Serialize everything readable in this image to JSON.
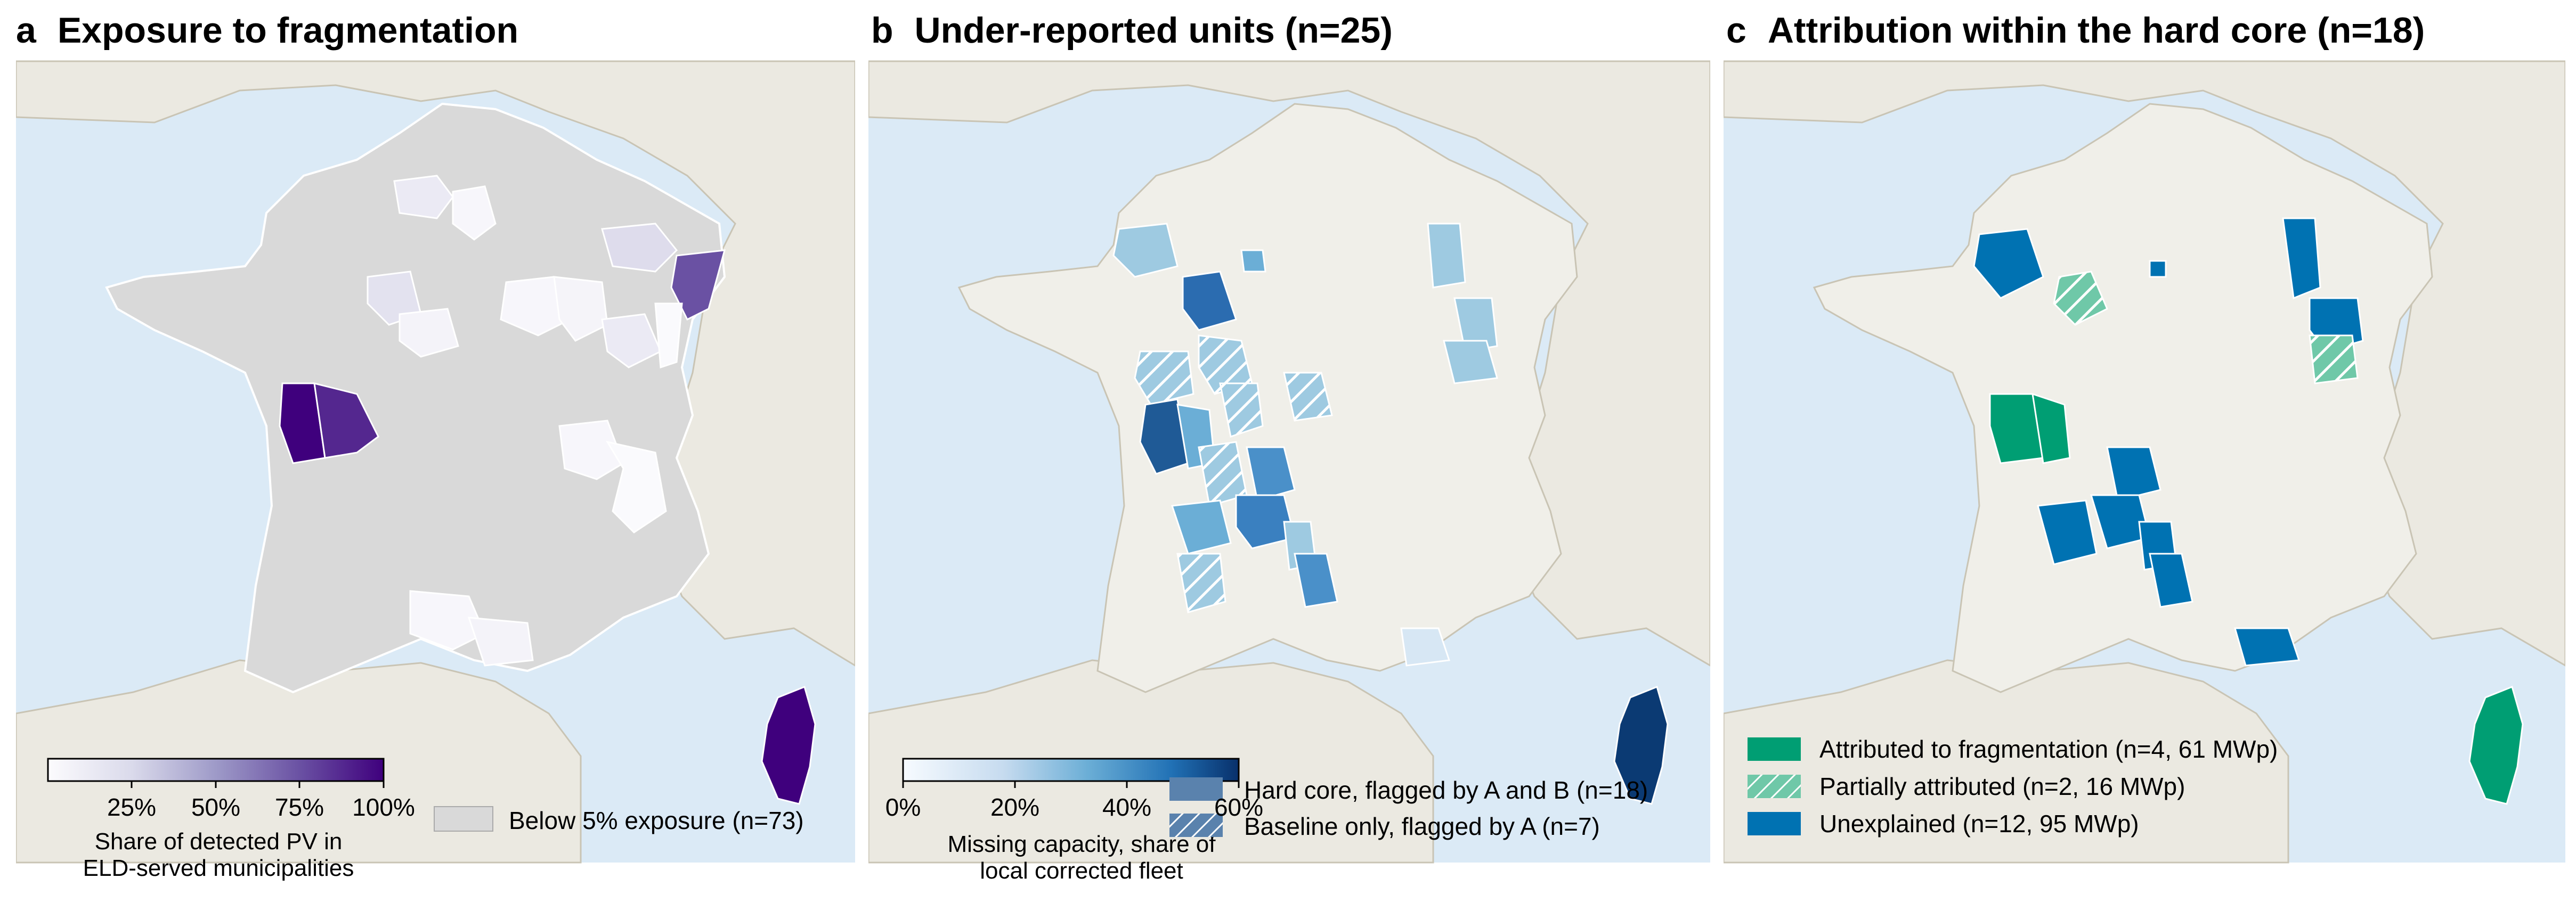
{
  "panels": [
    {
      "letter": "a",
      "title": "Exposure to fragmentation",
      "colorbar": {
        "ticks": [
          "25%",
          "50%",
          "75%",
          "100%"
        ],
        "label_line1": "Share of detected PV in",
        "label_line2": "ELD-served municipalities",
        "colors": [
          "#fcfbfd",
          "#dadaeb",
          "#9e9ac8",
          "#6a51a3",
          "#3f007d"
        ]
      },
      "legend": {
        "label": "Below 5% exposure (n=73)",
        "color": "#d9d9d9"
      }
    },
    {
      "letter": "b",
      "title": "Under-reported units (n=25)",
      "colorbar": {
        "ticks": [
          "0%",
          "20%",
          "40%",
          "60%"
        ],
        "label_line1": "Missing capacity, share of",
        "label_line2": "local corrected fleet",
        "colors": [
          "#f7fbff",
          "#c6dbef",
          "#6baed6",
          "#2171b5",
          "#08306b"
        ]
      },
      "legend": [
        {
          "label": "Hard core, flagged by A and B (n=18)",
          "style": "solid",
          "color": "#5a82ad"
        },
        {
          "label": "Baseline only, flagged by A (n=7)",
          "style": "hatched",
          "color": "#5a82ad"
        }
      ]
    },
    {
      "letter": "c",
      "title": "Attribution within the hard core (n=18)",
      "legend": [
        {
          "label": "Attributed to fragmentation (n=4, 61 MWp)",
          "style": "solid",
          "color": "#009e73"
        },
        {
          "label": "Partially attributed (n=2, 16 MWp)",
          "style": "hatched",
          "color": "#6fc8a8"
        },
        {
          "label": "Unexplained (n=12, 95 MWp)",
          "style": "solid",
          "color": "#0072b2"
        }
      ]
    }
  ],
  "map_colors": {
    "sea": "#dbeaf6",
    "land_neighbor": "#ebe9e1",
    "france_base_b": "#f0efe9",
    "france_base_a": "#d9d9d9",
    "border": "#ffffff"
  }
}
